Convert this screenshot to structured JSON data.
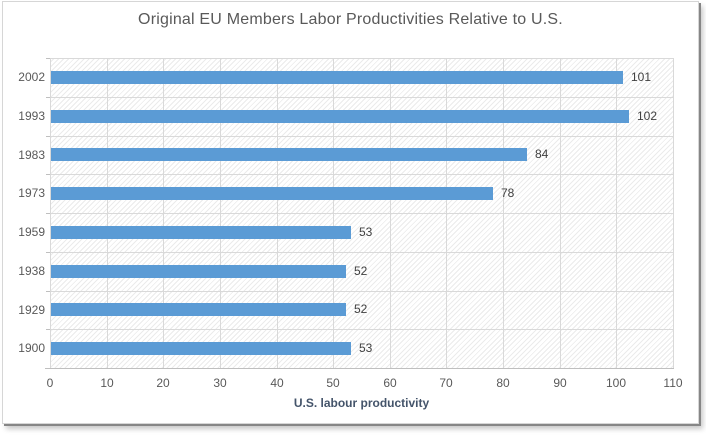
{
  "chart_data": {
    "type": "bar",
    "orientation": "horizontal",
    "title": "Original EU Members Labor Productivities Relative to U.S.",
    "categories": [
      "2002",
      "1993",
      "1983",
      "1973",
      "1959",
      "1938",
      "1929",
      "1900"
    ],
    "values": [
      101,
      102,
      84,
      78,
      53,
      52,
      52,
      53
    ],
    "xlabel": "U.S. labour productivity",
    "ylabel": "",
    "xlim": [
      0,
      110
    ],
    "x_ticks": [
      0,
      10,
      20,
      30,
      40,
      50,
      60,
      70,
      80,
      90,
      100,
      110
    ],
    "grid": true,
    "legend": "none",
    "plot_background_pattern": "light-diagonal-hatch",
    "colors": {
      "bar": "#5B9BD5",
      "gridline": "#D9D9D9",
      "axis_line": "#BFBFBF",
      "hatch": "#EBEBEB",
      "title_text": "#595959",
      "axis_text": "#595959",
      "value_text": "#404040",
      "axis_title_text": "#44546A",
      "background": "#FFFFFF"
    }
  }
}
